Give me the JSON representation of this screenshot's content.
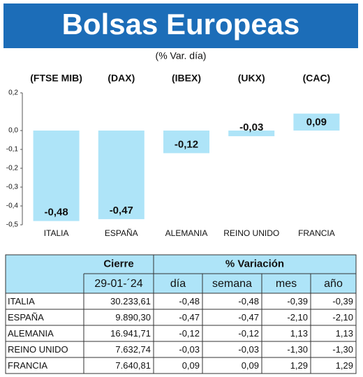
{
  "chart_data": {
    "type": "bar",
    "title": "Bolsas Europeas",
    "subtitle": "(% Var. día)",
    "categories": [
      "ITALIA",
      "ESPAÑA",
      "ALEMANIA",
      "REINO UNIDO",
      "FRANCIA"
    ],
    "indices": [
      "(FTSE MIB)",
      "(DAX)",
      "(IBEX)",
      "(UKX)",
      "(CAC)"
    ],
    "values": [
      -0.48,
      -0.47,
      -0.12,
      -0.03,
      0.09
    ],
    "value_labels": [
      "-0,48",
      "-0,47",
      "-0,12",
      "-0,03",
      "0,09"
    ],
    "color": "#aee4f8",
    "ylim": [
      -0.5,
      0.2
    ],
    "yticks": [
      {
        "value": 0.2,
        "label": "0,2"
      },
      {
        "value": 0,
        "label": "0,0"
      },
      {
        "value": -0.1,
        "label": "-0,1"
      },
      {
        "value": -0.2,
        "label": "-0,2"
      },
      {
        "value": -0.3,
        "label": "-0,3"
      },
      {
        "value": -0.4,
        "label": "-0,4"
      },
      {
        "value": -0.5,
        "label": "-0,5"
      }
    ]
  },
  "table": {
    "header": [
      "Cierre",
      "% Variación"
    ],
    "subheader": [
      "29-01-´24",
      "día",
      "semana",
      "mes",
      "año"
    ],
    "rows": [
      [
        "ITALIA",
        "30.233,61",
        "-0,48",
        "-0,48",
        "-0,39",
        "-0,39"
      ],
      [
        "ESPAÑA",
        "9.890,30",
        "-0,47",
        "-0,47",
        "-2,10",
        "-2,10"
      ],
      [
        "ALEMANIA",
        "16.941,71",
        "-0,12",
        "-0,12",
        "1,13",
        "1,13"
      ],
      [
        "REINO UNIDO",
        "7.632,74",
        "-0,03",
        "-0,03",
        "-1,30",
        "-1,30"
      ],
      [
        "FRANCIA",
        "7.640,81",
        "0,09",
        "0,09",
        "1,29",
        "1,29"
      ]
    ]
  }
}
